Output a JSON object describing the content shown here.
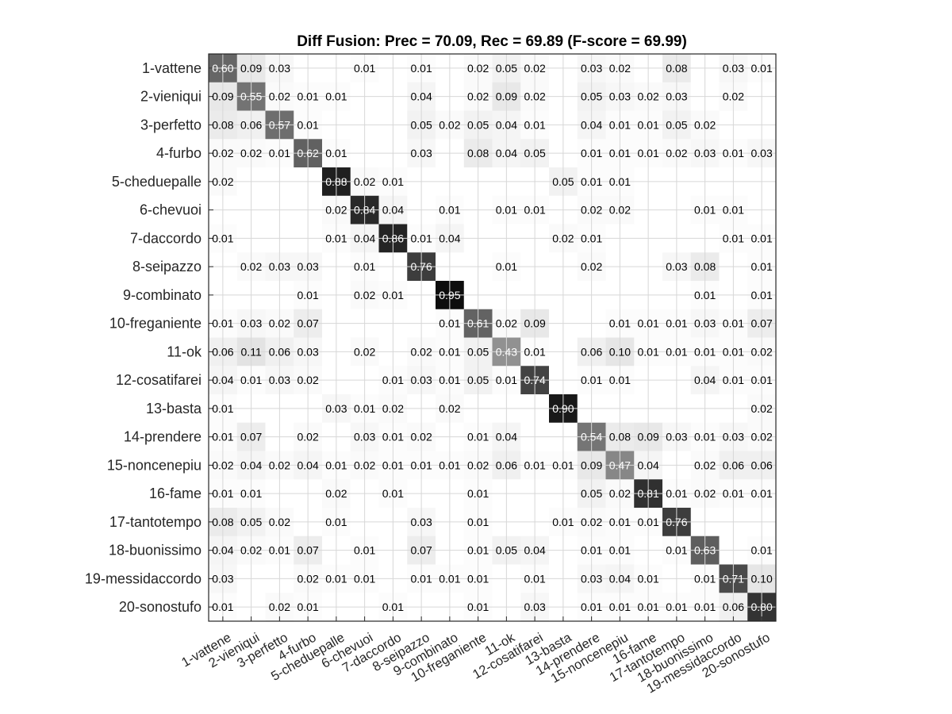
{
  "chart_data": {
    "type": "heatmap",
    "title": "Diff Fusion: Prec = 70.09, Rec = 69.89 (F-score = 69.99)",
    "categories": [
      "1-vattene",
      "2-vieniqui",
      "3-perfetto",
      "4-furbo",
      "5-cheduepalle",
      "6-chevuoi",
      "7-daccordo",
      "8-seipazzo",
      "9-combinato",
      "10-freganiente",
      "11-ok",
      "12-cosatifarei",
      "13-basta",
      "14-prendere",
      "15-noncenepiu",
      "16-fame",
      "17-tantotempo",
      "18-buonissimo",
      "19-messidaccordo",
      "20-sonostufo"
    ],
    "colormap": "gray-inverted",
    "matrix": [
      [
        0.6,
        0.09,
        0.03,
        0,
        0,
        0.01,
        0,
        0.01,
        0,
        0.02,
        0.05,
        0.02,
        0,
        0.03,
        0.02,
        0,
        0.08,
        0,
        0.03,
        0.01
      ],
      [
        0.09,
        0.55,
        0.02,
        0.01,
        0.01,
        0,
        0,
        0.04,
        0,
        0.02,
        0.09,
        0.02,
        0,
        0.05,
        0.03,
        0.02,
        0.03,
        0,
        0.02,
        0
      ],
      [
        0.08,
        0.06,
        0.57,
        0.01,
        0,
        0,
        0,
        0.05,
        0.02,
        0.05,
        0.04,
        0.01,
        0,
        0.04,
        0.01,
        0.01,
        0.05,
        0.02,
        0,
        0
      ],
      [
        0.02,
        0.02,
        0.01,
        0.62,
        0.01,
        0,
        0,
        0.03,
        0,
        0.08,
        0.04,
        0.05,
        0,
        0.01,
        0.01,
        0.01,
        0.02,
        0.03,
        0.01,
        0.03
      ],
      [
        0.02,
        0,
        0,
        0,
        0.88,
        0.02,
        0.01,
        0,
        0,
        0,
        0,
        0,
        0.05,
        0.01,
        0.01,
        0,
        0,
        0,
        0,
        0
      ],
      [
        0,
        0,
        0,
        0,
        0.02,
        0.84,
        0.04,
        0,
        0.01,
        0,
        0.01,
        0.01,
        0,
        0.02,
        0.02,
        0,
        0,
        0.01,
        0.01,
        0
      ],
      [
        0.01,
        0,
        0,
        0,
        0.01,
        0.04,
        0.86,
        0.01,
        0.04,
        0,
        0,
        0,
        0.02,
        0.01,
        0,
        0,
        0,
        0,
        0.01,
        0.01
      ],
      [
        0,
        0.02,
        0.03,
        0.03,
        0,
        0.01,
        0,
        0.76,
        0,
        0,
        0.01,
        0,
        0,
        0.02,
        0,
        0,
        0.03,
        0.08,
        0,
        0.01
      ],
      [
        0,
        0,
        0,
        0.01,
        0,
        0.02,
        0.01,
        0,
        0.95,
        0,
        0,
        0,
        0,
        0,
        0,
        0,
        0,
        0.01,
        0,
        0.01
      ],
      [
        0.01,
        0.03,
        0.02,
        0.07,
        0,
        0,
        0,
        0,
        0.01,
        0.61,
        0.02,
        0.09,
        0,
        0,
        0.01,
        0.01,
        0.01,
        0.03,
        0.01,
        0.07
      ],
      [
        0.06,
        0.11,
        0.06,
        0.03,
        0,
        0.02,
        0,
        0.02,
        0.01,
        0.05,
        0.43,
        0.01,
        0,
        0.06,
        0.1,
        0.01,
        0.01,
        0.01,
        0.01,
        0.02
      ],
      [
        0.04,
        0.01,
        0.03,
        0.02,
        0,
        0,
        0.01,
        0.03,
        0.01,
        0.05,
        0.01,
        0.74,
        0,
        0.01,
        0.01,
        0,
        0,
        0.04,
        0.01,
        0.01
      ],
      [
        0.01,
        0,
        0,
        0,
        0.03,
        0.01,
        0.02,
        0,
        0.02,
        0,
        0,
        0,
        0.9,
        0,
        0,
        0,
        0,
        0,
        0,
        0.02
      ],
      [
        0.01,
        0.07,
        0,
        0.02,
        0,
        0.03,
        0.01,
        0.02,
        0,
        0.01,
        0.04,
        0,
        0,
        0.54,
        0.08,
        0.09,
        0.03,
        0.01,
        0.03,
        0.02
      ],
      [
        0.02,
        0.04,
        0.02,
        0.04,
        0.01,
        0.02,
        0.01,
        0.01,
        0.01,
        0.02,
        0.06,
        0.01,
        0.01,
        0.09,
        0.47,
        0.04,
        0,
        0.02,
        0.06,
        0.06
      ],
      [
        0.01,
        0.01,
        0,
        0,
        0.02,
        0,
        0.01,
        0,
        0,
        0.01,
        0,
        0,
        0,
        0.05,
        0.02,
        0.81,
        0.01,
        0.02,
        0.01,
        0.01
      ],
      [
        0.08,
        0.05,
        0.02,
        0,
        0.01,
        0,
        0,
        0.03,
        0,
        0.01,
        0,
        0,
        0.01,
        0.02,
        0.01,
        0.01,
        0.76,
        0,
        0,
        0
      ],
      [
        0.04,
        0.02,
        0.01,
        0.07,
        0,
        0.01,
        0,
        0.07,
        0,
        0.01,
        0.05,
        0.04,
        0,
        0.01,
        0.01,
        0,
        0.01,
        0.63,
        0,
        0.01
      ],
      [
        0.03,
        0,
        0,
        0.02,
        0.01,
        0.01,
        0,
        0.01,
        0.01,
        0.01,
        0,
        0.01,
        0,
        0.03,
        0.04,
        0.01,
        0,
        0.01,
        0.71,
        0.1
      ],
      [
        0.01,
        0,
        0.02,
        0.01,
        0,
        0,
        0.01,
        0,
        0,
        0.01,
        0,
        0.03,
        0,
        0.01,
        0.01,
        0.01,
        0.01,
        0.01,
        0.06,
        0.8
      ]
    ],
    "grid": true,
    "legend": "none"
  }
}
